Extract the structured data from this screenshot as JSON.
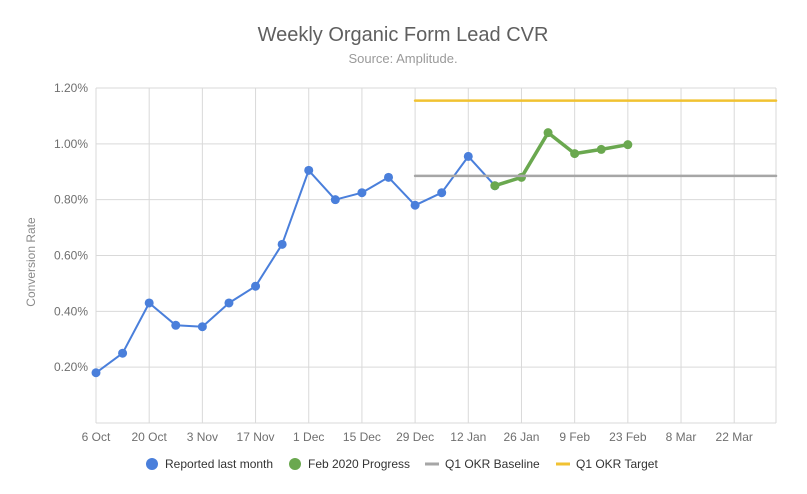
{
  "chart_data": {
    "type": "line",
    "title": "Weekly Organic Form Lead CVR",
    "subtitle": "Source: Amplitude.",
    "ylabel": "Conversion Rate",
    "xlabel": "",
    "ylim": [
      0,
      1.2
    ],
    "xlim": [
      "2019-10-06",
      "2020-04-02"
    ],
    "grid": true,
    "legend_position": "bottom",
    "y_ticks": [
      "0.20%",
      "0.40%",
      "0.60%",
      "0.80%",
      "1.00%",
      "1.20%"
    ],
    "x_ticks": [
      "6 Oct",
      "20 Oct",
      "3 Nov",
      "17 Nov",
      "1 Dec",
      "15 Dec",
      "29 Dec",
      "12 Jan",
      "26 Jan",
      "9 Feb",
      "23 Feb",
      "8 Mar",
      "22 Mar"
    ],
    "series": [
      {
        "name": "Reported last month",
        "color": "#4a7fdb",
        "x": [
          "2019-10-06",
          "2019-10-13",
          "2019-10-20",
          "2019-10-27",
          "2019-11-03",
          "2019-11-10",
          "2019-11-17",
          "2019-11-24",
          "2019-12-01",
          "2019-12-08",
          "2019-12-15",
          "2019-12-22",
          "2019-12-29",
          "2020-01-05",
          "2020-01-12",
          "2020-01-19"
        ],
        "values": [
          0.18,
          0.25,
          0.43,
          0.35,
          0.345,
          0.43,
          0.49,
          0.64,
          0.905,
          0.8,
          0.825,
          0.88,
          0.78,
          0.825,
          0.955,
          0.85
        ]
      },
      {
        "name": "Feb 2020 Progress",
        "color": "#6aa84f",
        "x": [
          "2020-01-19",
          "2020-01-26",
          "2020-02-02",
          "2020-02-09",
          "2020-02-16",
          "2020-02-23"
        ],
        "values": [
          0.85,
          0.88,
          1.04,
          0.965,
          0.98,
          0.997
        ]
      },
      {
        "name": "Q1 OKR Baseline",
        "color": "#a6a6a6",
        "x": [
          "2019-12-29",
          "2020-04-02"
        ],
        "values": [
          0.885,
          0.885
        ]
      },
      {
        "name": "Q1 OKR Target",
        "color": "#f1c232",
        "x": [
          "2019-12-29",
          "2020-04-02"
        ],
        "values": [
          1.155,
          1.155
        ]
      }
    ]
  }
}
